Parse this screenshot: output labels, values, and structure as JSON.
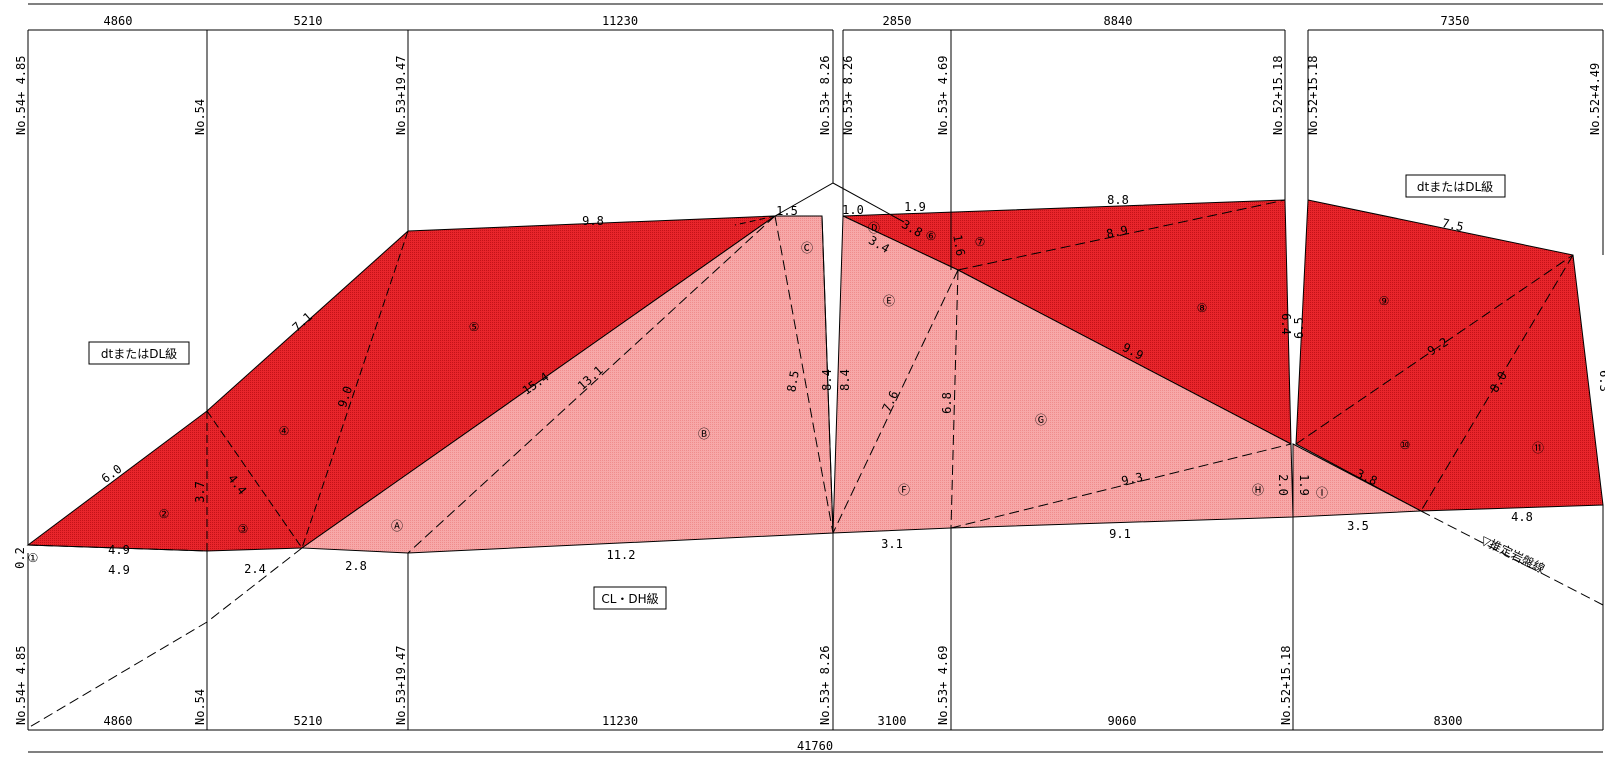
{
  "overall_span_top": "",
  "overall_span_bottom": "41760",
  "top_dimensions": [
    "4860",
    "5210",
    "11230",
    "2850",
    "8840",
    "7350"
  ],
  "bottom_dimensions": [
    "4860",
    "5210",
    "11230",
    "3100",
    "9060",
    "8300"
  ],
  "stations": [
    "No.54+ 4.85",
    "No.54",
    "No.53+19.47",
    "No.53+ 8.26",
    "No.53+ 8.26",
    "No.53+ 4.69",
    "No.52+15.18",
    "No.52+15.18",
    "No.52+4.49"
  ],
  "bottom_stations": [
    "No.54+ 4.85",
    "No.54",
    "No.53+19.47",
    "No.53+ 8.26",
    "No.53+ 4.69",
    "No.52+15.18"
  ],
  "rock_labels": {
    "left": "dtまたはDL級",
    "right": "dtまたはDL級",
    "bottom": "CL・DH級"
  },
  "rock_line_label": "▽推定岩盤線",
  "segment_lengths": [
    "6.0",
    "7.1",
    "9.8",
    "1.5",
    "1.0",
    "1.9",
    "8.8",
    "7.5",
    "3.7",
    "4.4",
    "9.0",
    "15.4",
    "13.1",
    "8.5",
    "8.4",
    "8.4",
    "3.8",
    "3.4",
    "1.6",
    "8.9",
    "7.6",
    "6.8",
    "9.9",
    "6.4",
    "6.5",
    "9.2",
    "8.0",
    "6.3",
    "9.3",
    "2.0",
    "1.9",
    "3.8",
    "4.8",
    "3.5",
    "9.1",
    "3.1",
    "11.2",
    "2.8",
    "2.4",
    "4.9",
    "4.9",
    "0.2"
  ],
  "region_labels": [
    "①",
    "②",
    "③",
    "④",
    "⑤",
    "⑥",
    "⑦",
    "⑧",
    "⑨",
    "⑩",
    "⑪",
    "Ⓐ",
    "Ⓑ",
    "Ⓒ",
    "Ⓓ",
    "Ⓔ",
    "Ⓕ",
    "Ⓖ",
    "Ⓗ",
    "Ⓘ"
  ],
  "colors": {
    "dt_dl_fill": "#e8252b",
    "cl_dh_fill": "#f5a4a4",
    "line": "#000000"
  }
}
